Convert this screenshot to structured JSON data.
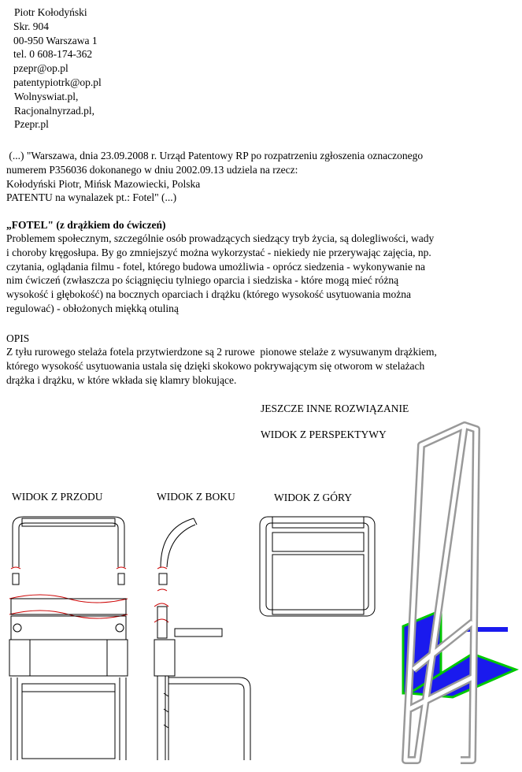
{
  "contact": [
    "Piotr Kołodyński",
    "Skr. 904",
    "00-950 Warszawa 1",
    "tel. 0 608-174-362",
    "pzepr@op.pl",
    "patentypiotrk@op.pl",
    "Wolnyswiat.pl,",
    "Racjonalnyrzad.pl,",
    "Pzepr.pl"
  ],
  "quote": [
    " (...) \"Warszawa, dnia 23.09.2008 r. Urząd Patentowy RP po rozpatrzeniu zgłoszenia oznaczonego",
    "numerem P356036 dokonanego w dniu 2002.09.13 udziela na rzecz:",
    "Kołodyński Piotr, Mińsk Mazowiecki, Polska",
    "PATENTU na wynalazek pt.: Fotel\" (...)"
  ],
  "heading": "„FOTEL\" (z drążkiem do ćwiczeń)",
  "problem": [
    "Problemem społecznym, szczególnie osób prowadzących siedzący tryb życia, są dolegliwości, wady",
    "i choroby kręgosłupa. By go zmniejszyć można wykorzystać - niekiedy nie przerywając zajęcia, np.",
    "czytania, oglądania filmu - fotel, którego budowa umożliwia - oprócz siedzenia - wykonywanie na",
    "nim ćwiczeń (zwłaszcza po ściągnięciu tylniego oparcia i siedziska - które mogą mieć różną",
    "wysokość i głębokość) na bocznych oparciach i drążku (którego wysokość usytuowania można",
    "regulować) - obłożonych miękką otuliną"
  ],
  "opis_title": "OPIS",
  "opis": [
    "Z tyłu rurowego stelaża fotela przytwierdzone są 2 rurowe  pionowe stelaże z wysuwanym drążkiem,",
    "którego wysokość usytuowania ustala się dzięki skokowo pokrywającym się otworom w stelażach",
    "drążka i drążku, w które wkłada się klamry blokujące."
  ],
  "labels": {
    "other": "JESZCZE INNE ROZWIĄZANIE",
    "perspective": "WIDOK Z PERSPEKTYWY",
    "front": "WIDOK Z PRZODU",
    "side": "WIDOK Z BOKU",
    "top": "WIDOK Z GÓRY"
  }
}
